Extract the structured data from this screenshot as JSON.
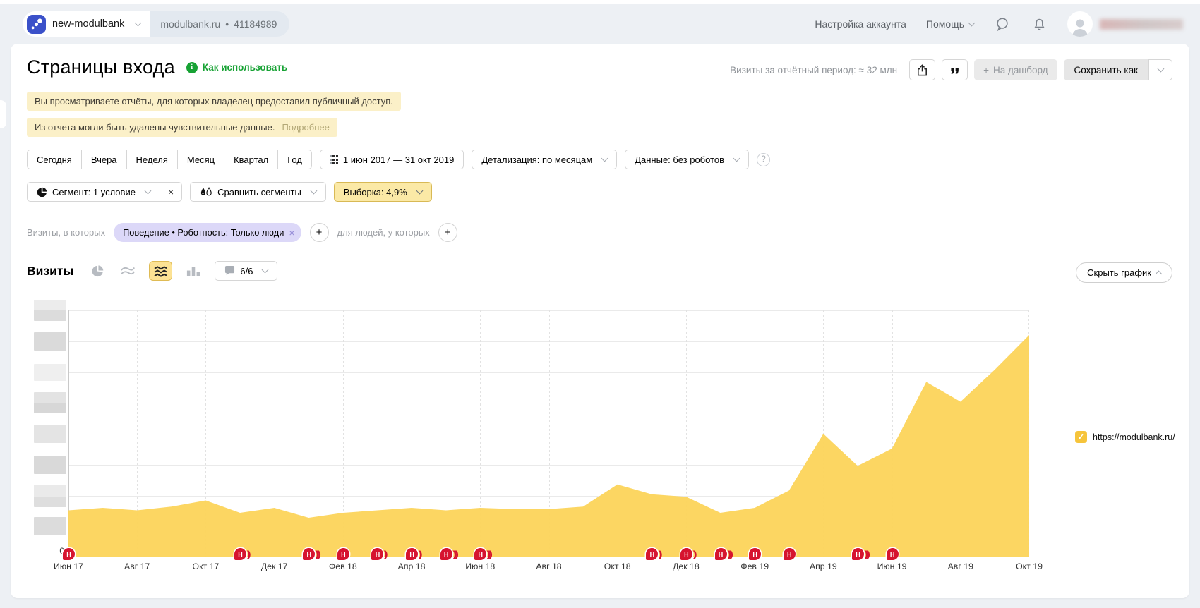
{
  "glyphs": {
    "plus": "+",
    "question": "?",
    "check": "✓",
    "marker": "Н",
    "bullet": "•",
    "close": "×",
    "quotes": "„",
    "info": "i",
    "zero": "0",
    "arc": ")"
  },
  "topbar": {
    "counter_name": "new-modulbank",
    "counter_domain": "modulbank.ru",
    "counter_id": "41184989",
    "account_settings": "Настройка аккаунта",
    "help": "Помощь"
  },
  "header": {
    "title": "Страницы входа",
    "how_to_use": "Как использовать",
    "visits_summary": "Визиты за отчётный период: ≈ 32 млн",
    "to_dashboard": "На дашборд",
    "save_as": "Сохранить как"
  },
  "notices": {
    "public_access": "Вы просматриваете отчёты, для которых владелец предоставил публичный доступ.",
    "sensitive_data": "Из отчета могли быть удалены чувствительные данные.",
    "more": "Подробнее"
  },
  "period": {
    "presets": [
      "Сегодня",
      "Вчера",
      "Неделя",
      "Месяц",
      "Квартал",
      "Год"
    ],
    "date_range": "1 июн 2017 — 31 окт 2019",
    "detail": "Детализация: по месяцам",
    "data_mode": "Данные: без роботов"
  },
  "segments": {
    "segment": "Сегмент: 1 условие",
    "compare": "Сравнить сегменты",
    "sampling": "Выборка: 4,9%"
  },
  "filters": {
    "visits_label": "Визиты, в которых",
    "chip": "Поведение • Роботность: Только люди",
    "people_label": "для людей, у которых"
  },
  "chartbar": {
    "metric": "Визиты",
    "annotations_count": "6/6",
    "hide_chart": "Скрыть график"
  },
  "legend": {
    "label": "https://modulbank.ru/",
    "color": "#f6c43b"
  },
  "chart_data": {
    "type": "area",
    "title": "Визиты",
    "series_name": "https://modulbank.ru/",
    "fill_color": "#fcd45c",
    "y_axis_redacted": true,
    "y_axis_bottom_label": "0",
    "grid": true,
    "legend_position": "right",
    "x_months": [
      "Июн 2017",
      "Июл 2017",
      "Авг 2017",
      "Сен 2017",
      "Окт 2017",
      "Ноя 2017",
      "Дек 2017",
      "Янв 2018",
      "Фев 2018",
      "Мар 2018",
      "Апр 2018",
      "Май 2018",
      "Июн 2018",
      "Июл 2018",
      "Авг 2018",
      "Сен 2018",
      "Окт 2018",
      "Ноя 2018",
      "Дек 2018",
      "Янв 2019",
      "Фев 2019",
      "Мар 2019",
      "Апр 2019",
      "Май 2019",
      "Июн 2019",
      "Июл 2019",
      "Авг 2019",
      "Сен 2019",
      "Окт 2019"
    ],
    "tick_labels": [
      "Июн 17",
      "Авг 17",
      "Окт 17",
      "Дек 17",
      "Фев 18",
      "Апр 18",
      "Июн 18",
      "Авг 18",
      "Окт 18",
      "Дек 18",
      "Фев 19",
      "Апр 19",
      "Июн 19",
      "Авг 19",
      "Окт 19"
    ],
    "values_relative": [
      0.19,
      0.2,
      0.19,
      0.205,
      0.23,
      0.18,
      0.2,
      0.16,
      0.18,
      0.19,
      0.2,
      0.19,
      0.2,
      0.195,
      0.195,
      0.205,
      0.295,
      0.255,
      0.245,
      0.18,
      0.2,
      0.27,
      0.5,
      0.37,
      0.44,
      0.71,
      0.63,
      0.76,
      0.9
    ],
    "values_est_millions": [
      0.68,
      0.72,
      0.68,
      0.74,
      0.83,
      0.65,
      0.72,
      0.58,
      0.65,
      0.68,
      0.72,
      0.68,
      0.72,
      0.7,
      0.7,
      0.74,
      1.06,
      0.92,
      0.88,
      0.65,
      0.72,
      0.97,
      1.8,
      1.33,
      1.58,
      2.56,
      2.27,
      2.74,
      3.24
    ],
    "annotations": [
      {
        "month": "Июн 2017",
        "extra_arcs": 0
      },
      {
        "month": "Ноя 2017",
        "extra_arcs": 1
      },
      {
        "month": "Янв 2018",
        "extra_arcs": 2
      },
      {
        "month": "Фев 2018",
        "extra_arcs": 0
      },
      {
        "month": "Мар 2018",
        "extra_arcs": 1
      },
      {
        "month": "Апр 2018",
        "extra_arcs": 1
      },
      {
        "month": "Май 2018",
        "extra_arcs": 2
      },
      {
        "month": "Июн 2018",
        "extra_arcs": 2
      },
      {
        "month": "Ноя 2018",
        "extra_arcs": 1
      },
      {
        "month": "Дек 2018",
        "extra_arcs": 1
      },
      {
        "month": "Янв 2019",
        "extra_arcs": 2
      },
      {
        "month": "Фев 2019",
        "extra_arcs": 0
      },
      {
        "month": "Мар 2019",
        "extra_arcs": 0
      },
      {
        "month": "Май 2019",
        "extra_arcs": 2
      },
      {
        "month": "Июн 2019",
        "extra_arcs": 0
      }
    ]
  }
}
